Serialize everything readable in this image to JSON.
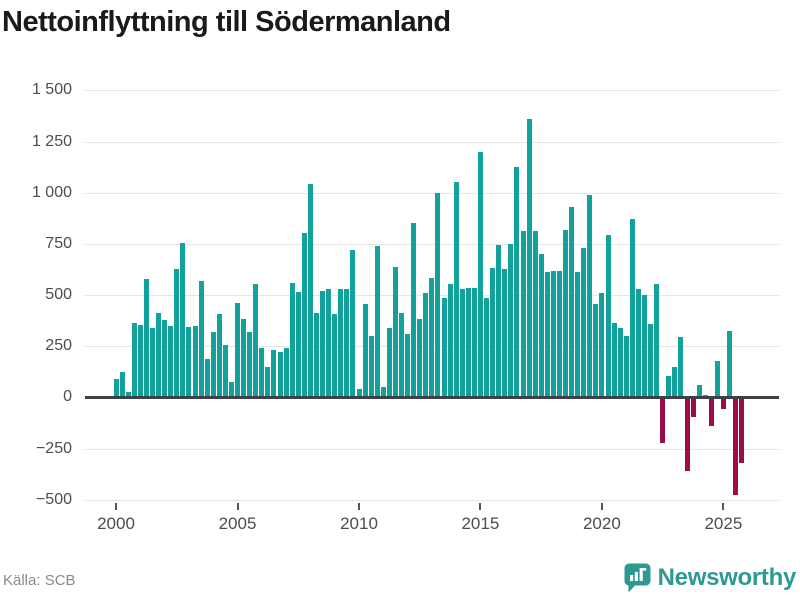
{
  "title": "Nettoinflyttning till Södermanland",
  "source": {
    "label": "Källa: SCB"
  },
  "branding": {
    "wordmark": "Newsworthy",
    "color": "#2c9a92",
    "logo_icon": "bar-chart-bubble-icon"
  },
  "colors": {
    "positive_bar": "#12a19b",
    "negative_bar": "#9c0c49",
    "zero_axis": "#3d4247",
    "gridline": "#e5e5e5",
    "tick_text": "#4d4d4d",
    "title_text": "#1a1a1a",
    "source_text": "#8a8a8a"
  },
  "chart_data": {
    "type": "bar",
    "title": "Nettoinflyttning till Södermanland",
    "frequency": "quarterly",
    "start_period": "2000 Q1",
    "end_period": "2025 Q4",
    "grid": true,
    "legend": "none",
    "ylim": [
      -560,
      1560
    ],
    "values": [
      90,
      125,
      25,
      365,
      355,
      580,
      340,
      410,
      380,
      350,
      625,
      755,
      345,
      350,
      570,
      185,
      320,
      405,
      255,
      75,
      460,
      385,
      320,
      555,
      240,
      150,
      230,
      220,
      240,
      560,
      515,
      805,
      1040,
      410,
      520,
      530,
      405,
      530,
      530,
      720,
      40,
      455,
      300,
      740,
      50,
      340,
      635,
      410,
      310,
      850,
      385,
      510,
      585,
      1000,
      485,
      555,
      1050,
      530,
      535,
      535,
      1200,
      485,
      630,
      745,
      625,
      750,
      1125,
      815,
      1360,
      815,
      700,
      610,
      615,
      615,
      820,
      930,
      610,
      730,
      990,
      455,
      510,
      795,
      365,
      340,
      300,
      870,
      530,
      500,
      360,
      555,
      -215,
      105,
      150,
      295,
      -355,
      -90,
      60,
      10,
      -135,
      180,
      -50,
      325,
      -470,
      -315
    ],
    "y_axis": {
      "ticks": [
        {
          "value": 1500,
          "label": "1 500"
        },
        {
          "value": 1250,
          "label": "1 250"
        },
        {
          "value": 1000,
          "label": "1 000"
        },
        {
          "value": 750,
          "label": "750"
        },
        {
          "value": 500,
          "label": "500"
        },
        {
          "value": 250,
          "label": "250"
        },
        {
          "value": 0,
          "label": "0"
        },
        {
          "value": -250,
          "label": "−250"
        },
        {
          "value": -500,
          "label": "−500"
        }
      ]
    },
    "x_axis": {
      "ticks": [
        {
          "label": "2000",
          "index": 0
        },
        {
          "label": "2005",
          "index": 20
        },
        {
          "label": "2010",
          "index": 40
        },
        {
          "label": "2015",
          "index": 60
        },
        {
          "label": "2020",
          "index": 80
        },
        {
          "label": "2025",
          "index": 100
        }
      ]
    }
  }
}
